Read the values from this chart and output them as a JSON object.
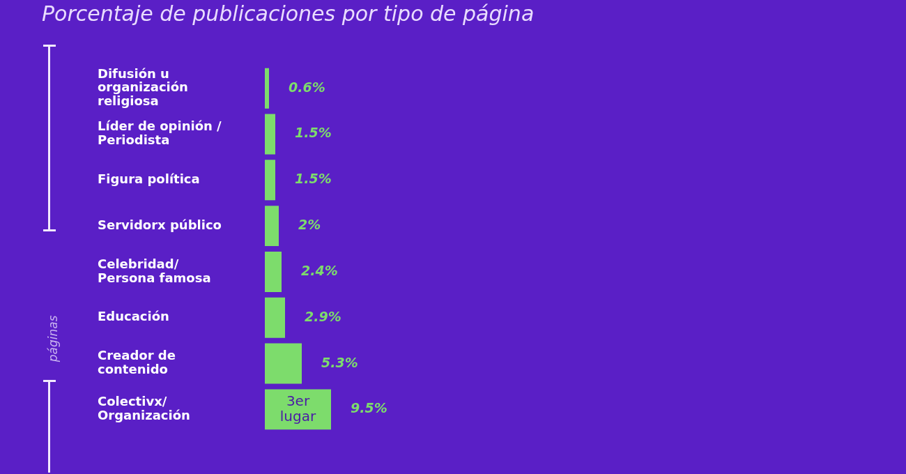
{
  "chart_data": {
    "type": "bar",
    "orientation": "horizontal",
    "title": "Porcentaje de publicaciones por tipo de página",
    "categories": [
      "Difusión u organización religiosa",
      "Líder de opinión / Periodista",
      "Figura política",
      "Servidorx público",
      "Celebridad/ Persona famosa",
      "Educación",
      "Creador de contenido",
      "Colectivx/ Organización"
    ],
    "values": [
      0.6,
      1.5,
      1.5,
      2,
      2.4,
      2.9,
      5.3,
      9.5
    ],
    "value_labels": [
      "0.6%",
      "1.5%",
      "1.5%",
      "2%",
      "2.4%",
      "2.9%",
      "5.3%",
      "9.5%"
    ],
    "color": "#7ddc6c",
    "tick_labels": "y",
    "legend": false,
    "annotations": [
      {
        "text": "3er lugar",
        "x": 4.75,
        "y": "Colectivx/ Organización"
      },
      "páginas"
    ]
  }
}
